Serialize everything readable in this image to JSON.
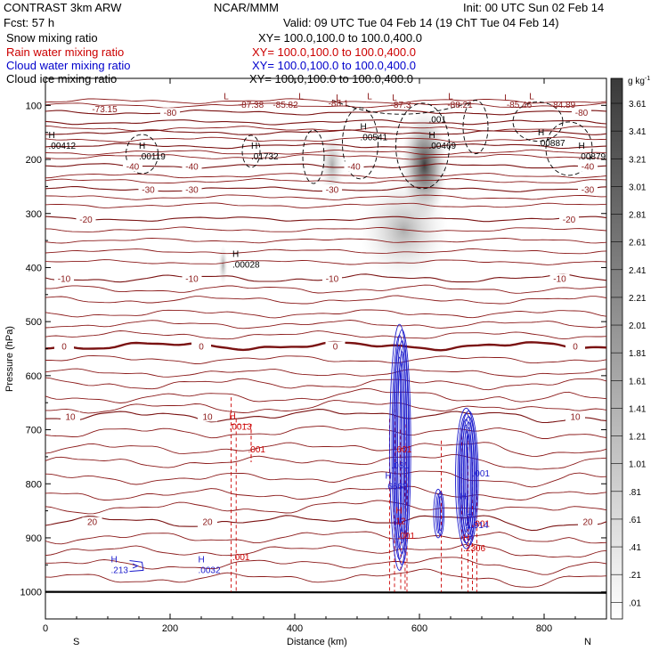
{
  "header": {
    "model": "CONTRAST  3km ARW",
    "org": "NCAR/MMM",
    "init": "Init: 00 UTC Sun 02 Feb 14",
    "fcst": "Fcst:    57 h",
    "valid": "Valid: 09 UTC Tue 04 Feb 14 (19 ChT Tue 04 Feb 14)"
  },
  "legend": [
    {
      "name": "Snow mixing ratio",
      "xy": "XY=  100.0,100.0 to 100.0,400.0",
      "color": "#000000"
    },
    {
      "name": "Rain water mixing ratio",
      "xy": "XY=  100.0,100.0 to 100.0,400.0",
      "color": "#cc0000"
    },
    {
      "name": "Cloud water mixing ratio",
      "xy": "XY=  100.0,100.0 to 100.0,400.0",
      "color": "#0000cc"
    },
    {
      "name": "Cloud ice mixing ratio",
      "xy": "XY=  100.0,100.0 to 100.0,400.0",
      "color": "#000000"
    }
  ],
  "colorbar": {
    "unit_label": "g kg",
    "unit_exp": "-1",
    "levels": [
      "3.61",
      "3.41",
      "3.21",
      "3.01",
      "2.81",
      "2.61",
      "2.41",
      "2.21",
      "2.01",
      "1.81",
      "1.61",
      "1.41",
      "1.21",
      "1.01",
      ".81",
      ".61",
      ".41",
      ".21",
      ".01"
    ]
  },
  "chart_data": {
    "type": "cross-section contour",
    "xlabel": "Distance (km)",
    "ylabel": "Pressure (hPa)",
    "xlim": [
      0,
      900
    ],
    "ylim": [
      1050,
      50
    ],
    "x_ticks": [
      0,
      200,
      400,
      600,
      800
    ],
    "y_ticks": [
      100,
      200,
      300,
      400,
      500,
      600,
      700,
      800,
      900,
      1000
    ],
    "x_end_labels": {
      "left": "S",
      "right": "N"
    },
    "temperature_contours": [
      {
        "value": -80,
        "p": 113,
        "labels": [
          {
            "x": 200,
            "text": "-80"
          },
          {
            "x": 860,
            "text": "-80"
          }
        ]
      },
      {
        "value": -70,
        "p": 131,
        "labels": []
      },
      {
        "value": -60,
        "p": 150,
        "labels": []
      },
      {
        "value": -50,
        "p": 175,
        "labels": []
      },
      {
        "value": -40,
        "p": 212,
        "labels": [
          {
            "x": 140,
            "text": "-40"
          },
          {
            "x": 235,
            "text": "-40"
          },
          {
            "x": 495,
            "text": "-40"
          },
          {
            "x": 870,
            "text": "-40"
          }
        ]
      },
      {
        "value": -30,
        "p": 255,
        "labels": [
          {
            "x": 165,
            "text": "-30"
          },
          {
            "x": 235,
            "text": "-30"
          },
          {
            "x": 460,
            "text": "-30"
          },
          {
            "x": 870,
            "text": "-30"
          }
        ]
      },
      {
        "value": -20,
        "p": 310,
        "labels": [
          {
            "x": 65,
            "text": "-20"
          },
          {
            "x": 840,
            "text": "-20"
          }
        ]
      },
      {
        "value": -10,
        "p": 420,
        "labels": [
          {
            "x": 30,
            "text": "-10"
          },
          {
            "x": 235,
            "text": "-10"
          },
          {
            "x": 460,
            "text": "-10"
          },
          {
            "x": 825,
            "text": "-10"
          }
        ]
      },
      {
        "value": 0,
        "p": 545,
        "labels": [
          {
            "x": 30,
            "text": "0"
          },
          {
            "x": 250,
            "text": "0"
          },
          {
            "x": 465,
            "text": "0"
          },
          {
            "x": 850,
            "text": "0"
          }
        ]
      },
      {
        "value": 10,
        "p": 675,
        "labels": [
          {
            "x": 40,
            "text": "10"
          },
          {
            "x": 260,
            "text": "10"
          },
          {
            "x": 850,
            "text": "10"
          }
        ]
      },
      {
        "value": 20,
        "p": 870,
        "labels": [
          {
            "x": 75,
            "text": "20"
          },
          {
            "x": 260,
            "text": "20"
          },
          {
            "x": 870,
            "text": "20"
          }
        ]
      }
    ],
    "temperature_extra_levels_p": [
      92,
      100,
      143,
      163,
      187,
      195,
      230,
      240,
      270,
      285,
      330,
      350,
      370,
      390,
      440,
      460,
      485,
      505,
      525,
      570,
      595,
      615,
      640,
      660,
      705,
      735,
      760,
      790,
      820,
      845,
      900,
      925,
      950,
      975
    ],
    "top_labels": [
      {
        "x": 95,
        "p": 106,
        "text": "-73.15"
      },
      {
        "x": 330,
        "p": 98,
        "text": "-87.38"
      },
      {
        "x": 385,
        "p": 98,
        "text": "-85.82"
      },
      {
        "x": 470,
        "p": 95,
        "text": "-88.1"
      },
      {
        "x": 570,
        "p": 98,
        "text": "-87.3"
      },
      {
        "x": 665,
        "p": 98,
        "text": "-88.21"
      },
      {
        "x": 760,
        "p": 98,
        "text": "-85.46"
      },
      {
        "x": 830,
        "p": 98,
        "text": "-84.89"
      }
    ],
    "low_markers": [
      {
        "x": 290,
        "p": 82,
        "text": "L"
      },
      {
        "x": 410,
        "p": 82,
        "text": "L"
      },
      {
        "x": 520,
        "p": 82,
        "text": "L"
      },
      {
        "x": 650,
        "p": 82,
        "text": "L"
      },
      {
        "x": 780,
        "p": 82,
        "text": "L"
      },
      {
        "x": 470,
        "p": 85,
        "text": "L"
      },
      {
        "x": 560,
        "p": 85,
        "text": "L"
      },
      {
        "x": 740,
        "p": 85,
        "text": "L"
      }
    ],
    "ice_highs": [
      {
        "x": 5,
        "p": 170,
        "value": ".00412"
      },
      {
        "x": 150,
        "p": 190,
        "value": ".00119"
      },
      {
        "x": 330,
        "p": 190,
        "value": ".01732"
      },
      {
        "x": 505,
        "p": 155,
        "value": ".00541"
      },
      {
        "x": 615,
        "p": 170,
        "value": ".00469"
      },
      {
        "x": 790,
        "p": 165,
        "value": ".00887"
      },
      {
        "x": 855,
        "p": 190,
        "value": ".00879"
      }
    ],
    "snow_highs": [
      {
        "x": 300,
        "p": 390,
        "value": ".00028"
      }
    ],
    "ice_contour_label": {
      "x": 615,
      "p": 125,
      "text": ".001"
    },
    "rain_highs": [
      {
        "x": 295,
        "p": 690,
        "value": ".0013"
      },
      {
        "x": 325,
        "p": 735,
        "text_only": ".001"
      },
      {
        "x": 300,
        "p": 935,
        "text_only": ".001"
      },
      {
        "x": 560,
        "p": 735,
        "text_only": ".001"
      },
      {
        "x": 562,
        "p": 865,
        "value": "12"
      },
      {
        "x": 565,
        "p": 895,
        "text_only": ".001"
      },
      {
        "x": 685,
        "p": 873,
        "text_only": ".001"
      },
      {
        "x": 670,
        "p": 915,
        "value": ".2306"
      }
    ],
    "cloud_water_highs": [
      {
        "x": 105,
        "p": 955,
        "value": ".213"
      },
      {
        "x": 245,
        "p": 955,
        "value": ".0032"
      },
      {
        "x": 545,
        "p": 800,
        "value": ".6663"
      },
      {
        "x": 555,
        "p": 765,
        "text_only": ".081"
      },
      {
        "x": 675,
        "p": 872,
        "value": "1.914"
      },
      {
        "x": 685,
        "p": 780,
        "text_only": ".001"
      },
      {
        "x": 665,
        "p": 838,
        "value": ""
      }
    ],
    "snow_max": 3.61,
    "surface_p": 1000
  }
}
